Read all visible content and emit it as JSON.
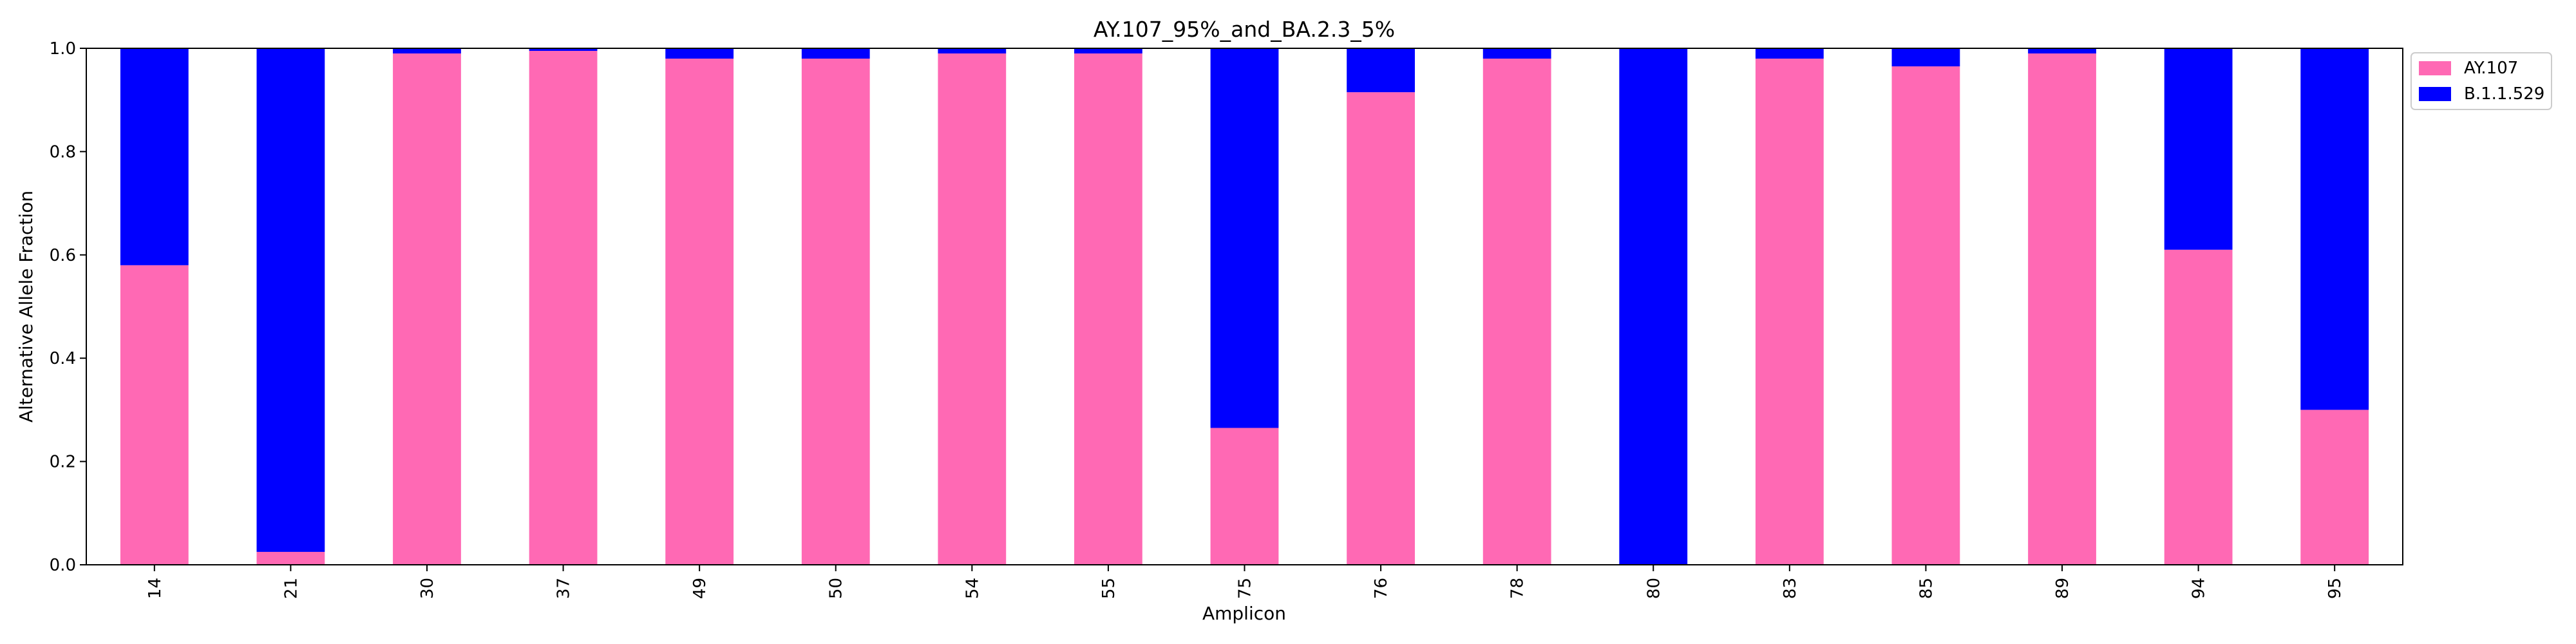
{
  "chart_data": {
    "type": "bar",
    "stacked": true,
    "title": "AY.107_95%_and_BA.2.3_5%",
    "xlabel": "Amplicon",
    "ylabel": "Alternative Allele Fraction",
    "ylim": [
      0,
      1.0
    ],
    "yticks": [
      "0.0",
      "0.2",
      "0.4",
      "0.6",
      "0.8",
      "1.0"
    ],
    "categories": [
      "14",
      "21",
      "30",
      "37",
      "49",
      "50",
      "54",
      "55",
      "75",
      "76",
      "78",
      "80",
      "83",
      "85",
      "89",
      "94",
      "95"
    ],
    "series": [
      {
        "name": "AY.107",
        "color": "#ff69b4",
        "values": [
          0.58,
          0.025,
          0.99,
          0.995,
          0.98,
          0.98,
          0.99,
          0.99,
          0.265,
          0.915,
          0.98,
          0.0,
          0.98,
          0.965,
          0.99,
          0.61,
          0.3
        ]
      },
      {
        "name": "B.1.1.529",
        "color": "#0000ff",
        "values": [
          0.42,
          0.975,
          0.01,
          0.005,
          0.02,
          0.02,
          0.01,
          0.01,
          0.735,
          0.085,
          0.02,
          1.0,
          0.02,
          0.035,
          0.01,
          0.39,
          0.7
        ]
      }
    ],
    "legend_position": "outside-top-right",
    "grid": false
  }
}
